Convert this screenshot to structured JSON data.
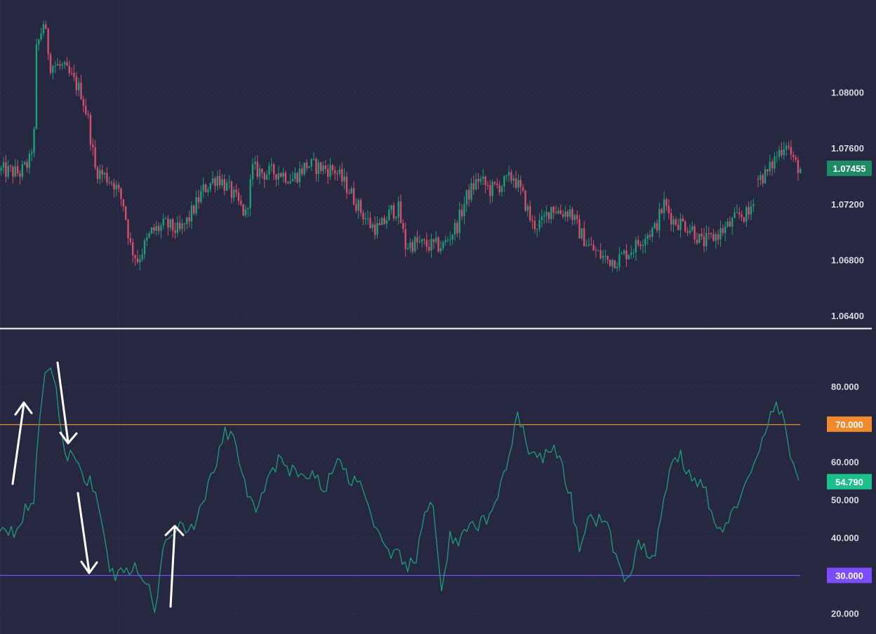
{
  "chart_data": [
    {
      "type": "candlestick",
      "panel": "price",
      "title": "",
      "ylim": [
        1.0632,
        1.0866
      ],
      "y_ticks": [
        "1.08000",
        "1.07600",
        "1.07200",
        "1.06800",
        "1.06400"
      ],
      "y_tick_values": [
        1.08,
        1.076,
        1.072,
        1.068,
        1.064
      ],
      "last_price": {
        "value": 1.07455,
        "label": "1.07455",
        "color": "#1f8a66"
      },
      "colors": {
        "up": "#1f9e7a",
        "down": "#d94f6b"
      },
      "grid": "dotted",
      "trend_keypoints": [
        [
          0,
          1.0744
        ],
        [
          8,
          1.0742
        ],
        [
          12,
          1.075
        ],
        [
          14,
          1.077
        ],
        [
          15,
          1.083
        ],
        [
          18,
          1.085
        ],
        [
          21,
          1.082
        ],
        [
          26,
          1.0818
        ],
        [
          30,
          1.081
        ],
        [
          34,
          1.08
        ],
        [
          37,
          1.078
        ],
        [
          40,
          1.0745
        ],
        [
          44,
          1.074
        ],
        [
          48,
          1.0735
        ],
        [
          52,
          1.072
        ],
        [
          55,
          1.069
        ],
        [
          58,
          1.068
        ],
        [
          61,
          1.069
        ],
        [
          64,
          1.07
        ],
        [
          70,
          1.0705
        ],
        [
          76,
          1.07
        ],
        [
          80,
          1.071
        ],
        [
          86,
          1.073
        ],
        [
          92,
          1.074
        ],
        [
          97,
          1.073
        ],
        [
          101,
          1.072
        ],
        [
          104,
          1.0712
        ],
        [
          107,
          1.0745
        ],
        [
          112,
          1.0742
        ],
        [
          118,
          1.0743
        ],
        [
          124,
          1.0738
        ],
        [
          130,
          1.0748
        ],
        [
          136,
          1.0746
        ],
        [
          142,
          1.0744
        ],
        [
          148,
          1.073
        ],
        [
          153,
          1.0715
        ],
        [
          157,
          1.0705
        ],
        [
          161,
          1.0702
        ],
        [
          166,
          1.0715
        ],
        [
          169,
          1.0716
        ],
        [
          172,
          1.069
        ],
        [
          176,
          1.0692
        ],
        [
          182,
          1.069
        ],
        [
          188,
          1.069
        ],
        [
          194,
          1.0705
        ],
        [
          198,
          1.0725
        ],
        [
          203,
          1.0738
        ],
        [
          208,
          1.073
        ],
        [
          214,
          1.0735
        ],
        [
          218,
          1.074
        ],
        [
          222,
          1.0725
        ],
        [
          226,
          1.0705
        ],
        [
          230,
          1.0706
        ],
        [
          234,
          1.0718
        ],
        [
          238,
          1.0714
        ],
        [
          242,
          1.0715
        ],
        [
          246,
          1.07
        ],
        [
          250,
          1.069
        ],
        [
          254,
          1.0684
        ],
        [
          258,
          1.068
        ],
        [
          262,
          1.068
        ],
        [
          266,
          1.0685
        ],
        [
          270,
          1.069
        ],
        [
          274,
          1.0698
        ],
        [
          278,
          1.0702
        ],
        [
          282,
          1.072
        ],
        [
          286,
          1.0708
        ],
        [
          290,
          1.0706
        ],
        [
          294,
          1.0702
        ],
        [
          298,
          1.0692
        ],
        [
          302,
          1.0695
        ],
        [
          306,
          1.07
        ],
        [
          310,
          1.0705
        ],
        [
          314,
          1.0712
        ],
        [
          318,
          1.0712
        ],
        [
          322,
          1.0738
        ],
        [
          326,
          1.0742
        ],
        [
          330,
          1.0755
        ],
        [
          334,
          1.0765
        ],
        [
          337,
          1.075
        ],
        [
          340,
          1.0745
        ]
      ],
      "gap_after_index": 321
    },
    {
      "type": "line",
      "panel": "oscillator",
      "title": "",
      "ylim": [
        14.5,
        95
      ],
      "y_ticks": [
        "80.000",
        "60.000",
        "50.000",
        "40.000",
        "20.000"
      ],
      "y_tick_values": [
        80,
        60,
        50,
        40,
        20
      ],
      "series": [
        {
          "name": "",
          "color": "#1f9e7a",
          "keypoints": [
            [
              0,
              43
            ],
            [
              5,
              42
            ],
            [
              8,
              46
            ],
            [
              12,
              50
            ],
            [
              14,
              70
            ],
            [
              16,
              85
            ],
            [
              19,
              84
            ],
            [
              21,
              72
            ],
            [
              23,
              61
            ],
            [
              27,
              62
            ],
            [
              30,
              56
            ],
            [
              33,
              54
            ],
            [
              36,
              45
            ],
            [
              39,
              31
            ],
            [
              42,
              30
            ],
            [
              46,
              32
            ],
            [
              50,
              31
            ],
            [
              53,
              26
            ],
            [
              55,
              20
            ],
            [
              57,
              31
            ],
            [
              58,
              39
            ],
            [
              61,
              42
            ],
            [
              64,
              44
            ],
            [
              68,
              42
            ],
            [
              72,
              48
            ],
            [
              76,
              58
            ],
            [
              80,
              68
            ],
            [
              83,
              66
            ],
            [
              86,
              58
            ],
            [
              88,
              50
            ],
            [
              90,
              48
            ],
            [
              93,
              50
            ],
            [
              96,
              58
            ],
            [
              99,
              60
            ],
            [
              102,
              58
            ],
            [
              106,
              58
            ],
            [
              110,
              56
            ],
            [
              113,
              56
            ],
            [
              115,
              52
            ],
            [
              118,
              58
            ],
            [
              121,
              60
            ],
            [
              124,
              56
            ],
            [
              127,
              55
            ],
            [
              130,
              52
            ],
            [
              133,
              42
            ],
            [
              136,
              38
            ],
            [
              139,
              34
            ],
            [
              142,
              36
            ],
            [
              145,
              32
            ],
            [
              148,
              34
            ],
            [
              151,
              46
            ],
            [
              154,
              50
            ],
            [
              157,
              26
            ],
            [
              160,
              40
            ],
            [
              163,
              38
            ],
            [
              166,
              42
            ],
            [
              169,
              43
            ],
            [
              172,
              44
            ],
            [
              175,
              46
            ],
            [
              178,
              55
            ],
            [
              181,
              62
            ],
            [
              184,
              72
            ],
            [
              186,
              70
            ],
            [
              188,
              62
            ],
            [
              191,
              61
            ],
            [
              194,
              62
            ],
            [
              197,
              63
            ],
            [
              200,
              58
            ],
            [
              203,
              50
            ],
            [
              206,
              36
            ],
            [
              209,
              46
            ],
            [
              212,
              44
            ],
            [
              215,
              45
            ],
            [
              218,
              38
            ],
            [
              221,
              30
            ],
            [
              224,
              28
            ],
            [
              227,
              38
            ],
            [
              230,
              36
            ],
            [
              233,
              37
            ],
            [
              236,
              50
            ],
            [
              239,
              60
            ],
            [
              242,
              62
            ],
            [
              245,
              56
            ],
            [
              248,
              55
            ],
            [
              251,
              52
            ],
            [
              254,
              44
            ],
            [
              257,
              40
            ],
            [
              260,
              48
            ],
            [
              263,
              50
            ],
            [
              266,
              55
            ],
            [
              269,
              60
            ],
            [
              272,
              68
            ],
            [
              275,
              75
            ],
            [
              278,
              72
            ],
            [
              281,
              63
            ],
            [
              284,
              55
            ]
          ]
        }
      ],
      "levels": [
        {
          "value": 70,
          "label": "70.000",
          "color": "#f08a2d",
          "tag_color": "#f08a2d"
        },
        {
          "value": 30,
          "label": "30.000",
          "color": "#7b4dff",
          "tag_color": "#7b4dff"
        }
      ],
      "last_value": {
        "value": 54.79,
        "label": "54.790",
        "color": "#1fbf8c"
      },
      "grid": "dotted"
    }
  ],
  "annotations": [
    {
      "kind": "arrow",
      "direction": "up",
      "color": "#ffffff"
    },
    {
      "kind": "arrow",
      "direction": "down",
      "color": "#ffffff"
    },
    {
      "kind": "arrow",
      "direction": "down",
      "color": "#ffffff"
    },
    {
      "kind": "arrow",
      "direction": "up",
      "color": "#ffffff"
    }
  ]
}
